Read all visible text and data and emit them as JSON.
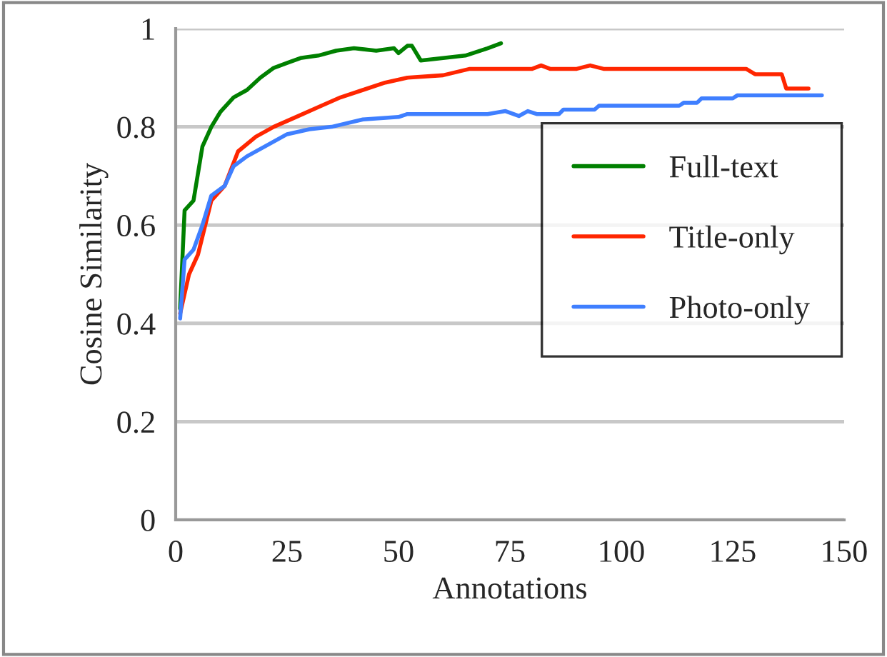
{
  "chart_data": {
    "type": "line",
    "xlabel": "Annotations",
    "ylabel": "Cosine Similarity",
    "xlim": [
      0,
      150
    ],
    "xticks": [
      0,
      25,
      50,
      75,
      100,
      125,
      150
    ],
    "ylim": [
      0,
      1
    ],
    "yticks": [
      0,
      0.2,
      0.4,
      0.6,
      0.8,
      1
    ],
    "grid": "y",
    "legend": "right",
    "marker": "none",
    "line_style": "solid",
    "series": [
      {
        "name": "Full-text",
        "color": "#008000",
        "x": [
          1,
          2,
          4,
          6,
          8,
          10,
          13,
          16,
          19,
          22,
          25,
          28,
          32,
          36,
          40,
          45,
          49,
          50,
          52,
          53,
          55,
          60,
          65,
          70,
          73
        ],
        "values": [
          0.43,
          0.63,
          0.65,
          0.76,
          0.8,
          0.83,
          0.86,
          0.875,
          0.9,
          0.92,
          0.93,
          0.94,
          0.945,
          0.955,
          0.96,
          0.955,
          0.96,
          0.95,
          0.965,
          0.965,
          0.935,
          0.94,
          0.945,
          0.96,
          0.97
        ]
      },
      {
        "name": "Title-only",
        "color": "#ff2600",
        "x": [
          1,
          3,
          5,
          8,
          11,
          14,
          18,
          22,
          27,
          32,
          37,
          42,
          47,
          52,
          60,
          66,
          75,
          80,
          82,
          84,
          90,
          93,
          96,
          110,
          128,
          130,
          136,
          137,
          142
        ],
        "values": [
          0.42,
          0.5,
          0.54,
          0.65,
          0.68,
          0.75,
          0.78,
          0.8,
          0.82,
          0.84,
          0.86,
          0.875,
          0.89,
          0.9,
          0.905,
          0.918,
          0.918,
          0.918,
          0.925,
          0.918,
          0.918,
          0.925,
          0.918,
          0.918,
          0.918,
          0.907,
          0.907,
          0.878,
          0.878
        ]
      },
      {
        "name": "Photo-only",
        "color": "#3f7fff",
        "x": [
          1,
          2,
          4,
          6,
          8,
          11,
          13,
          16,
          20,
          25,
          30,
          35,
          42,
          50,
          52,
          70,
          74,
          77,
          79,
          81,
          86,
          87,
          94,
          95,
          113,
          114,
          117,
          118,
          125,
          126,
          145
        ],
        "values": [
          0.41,
          0.53,
          0.55,
          0.6,
          0.66,
          0.68,
          0.72,
          0.74,
          0.76,
          0.785,
          0.795,
          0.8,
          0.815,
          0.82,
          0.826,
          0.826,
          0.832,
          0.822,
          0.832,
          0.826,
          0.826,
          0.835,
          0.835,
          0.843,
          0.843,
          0.849,
          0.849,
          0.858,
          0.858,
          0.864,
          0.864
        ]
      }
    ]
  }
}
